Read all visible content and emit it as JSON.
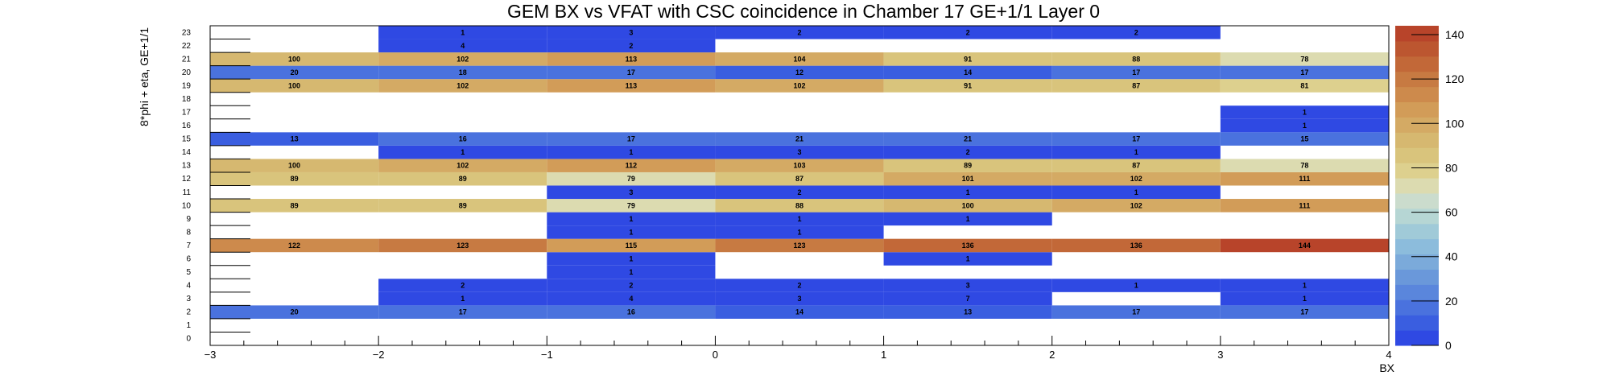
{
  "chart_data": {
    "type": "heatmap",
    "title": "GEM BX vs VFAT with CSC coincidence in Chamber 17 GE+1/1 Layer 0",
    "xlabel": "BX",
    "ylabel": "8*phi + eta, GE+1/1",
    "x_range": [
      -3,
      4
    ],
    "y_range": [
      0,
      24
    ],
    "x_ticks": [
      "−3",
      "−2",
      "−1",
      "0",
      "1",
      "2",
      "3",
      "4"
    ],
    "x_tick_values": [
      -3,
      -2,
      -1,
      0,
      1,
      2,
      3,
      4
    ],
    "x_bin_edges": [
      -3,
      -2,
      -1,
      0,
      1,
      2,
      3,
      4
    ],
    "y_ticks": [
      "0",
      "1",
      "2",
      "3",
      "4",
      "5",
      "6",
      "7",
      "8",
      "9",
      "10",
      "11",
      "12",
      "13",
      "14",
      "15",
      "16",
      "17",
      "18",
      "19",
      "20",
      "21",
      "22",
      "23"
    ],
    "colorbar": {
      "range": [
        0,
        144
      ],
      "ticks": [
        "0",
        "20",
        "40",
        "60",
        "80",
        "100",
        "120",
        "140"
      ],
      "tick_values": [
        0,
        20,
        40,
        60,
        80,
        100,
        120,
        140
      ],
      "colors": [
        "#2f49e3",
        "#3a5ee0",
        "#4a72de",
        "#5a86dc",
        "#6a98da",
        "#7baada",
        "#8cbcdc",
        "#a0cad8",
        "#b6d6d4",
        "#cbdccd",
        "#dcdbb0",
        "#ddd08e",
        "#d9c47c",
        "#d6b870",
        "#d4aa64",
        "#d29c58",
        "#cd8a4c",
        "#c77a42",
        "#c26838",
        "#bc5630",
        "#b8442a"
      ],
      "max_value": 144
    },
    "cells": [
      {
        "x": -2.5,
        "y": 2,
        "value": 20
      },
      {
        "x": -1.5,
        "y": 2,
        "value": 17
      },
      {
        "x": -0.5,
        "y": 2,
        "value": 16
      },
      {
        "x": 0.5,
        "y": 2,
        "value": 14
      },
      {
        "x": 1.5,
        "y": 2,
        "value": 13
      },
      {
        "x": 2.5,
        "y": 2,
        "value": 17
      },
      {
        "x": 3.5,
        "y": 2,
        "value": 17
      },
      {
        "x": -1.5,
        "y": 3,
        "value": 1
      },
      {
        "x": -0.5,
        "y": 3,
        "value": 4
      },
      {
        "x": 0.5,
        "y": 3,
        "value": 3
      },
      {
        "x": 1.5,
        "y": 3,
        "value": 7
      },
      {
        "x": 3.5,
        "y": 3,
        "value": 1
      },
      {
        "x": -1.5,
        "y": 4,
        "value": 2
      },
      {
        "x": -0.5,
        "y": 4,
        "value": 2
      },
      {
        "x": 0.5,
        "y": 4,
        "value": 2
      },
      {
        "x": 1.5,
        "y": 4,
        "value": 3
      },
      {
        "x": 2.5,
        "y": 4,
        "value": 1
      },
      {
        "x": 3.5,
        "y": 4,
        "value": 1
      },
      {
        "x": -0.5,
        "y": 5,
        "value": 1
      },
      {
        "x": -0.5,
        "y": 6,
        "value": 1
      },
      {
        "x": 1.5,
        "y": 6,
        "value": 1
      },
      {
        "x": -2.5,
        "y": 7,
        "value": 122
      },
      {
        "x": -1.5,
        "y": 7,
        "value": 123
      },
      {
        "x": -0.5,
        "y": 7,
        "value": 115
      },
      {
        "x": 0.5,
        "y": 7,
        "value": 123
      },
      {
        "x": 1.5,
        "y": 7,
        "value": 136
      },
      {
        "x": 2.5,
        "y": 7,
        "value": 136
      },
      {
        "x": 3.5,
        "y": 7,
        "value": 144
      },
      {
        "x": -0.5,
        "y": 8,
        "value": 1
      },
      {
        "x": 0.5,
        "y": 8,
        "value": 1
      },
      {
        "x": -0.5,
        "y": 9,
        "value": 1
      },
      {
        "x": 0.5,
        "y": 9,
        "value": 1
      },
      {
        "x": 1.5,
        "y": 9,
        "value": 1
      },
      {
        "x": -2.5,
        "y": 10,
        "value": 89
      },
      {
        "x": -1.5,
        "y": 10,
        "value": 89
      },
      {
        "x": -0.5,
        "y": 10,
        "value": 79
      },
      {
        "x": 0.5,
        "y": 10,
        "value": 88
      },
      {
        "x": 1.5,
        "y": 10,
        "value": 100
      },
      {
        "x": 2.5,
        "y": 10,
        "value": 102
      },
      {
        "x": 3.5,
        "y": 10,
        "value": 111
      },
      {
        "x": -0.5,
        "y": 11,
        "value": 3
      },
      {
        "x": 0.5,
        "y": 11,
        "value": 2
      },
      {
        "x": 1.5,
        "y": 11,
        "value": 1
      },
      {
        "x": 2.5,
        "y": 11,
        "value": 1
      },
      {
        "x": -2.5,
        "y": 12,
        "value": 89
      },
      {
        "x": -1.5,
        "y": 12,
        "value": 89
      },
      {
        "x": -0.5,
        "y": 12,
        "value": 79
      },
      {
        "x": 0.5,
        "y": 12,
        "value": 87
      },
      {
        "x": 1.5,
        "y": 12,
        "value": 101
      },
      {
        "x": 2.5,
        "y": 12,
        "value": 102
      },
      {
        "x": 3.5,
        "y": 12,
        "value": 111
      },
      {
        "x": -2.5,
        "y": 13,
        "value": 100
      },
      {
        "x": -1.5,
        "y": 13,
        "value": 102
      },
      {
        "x": -0.5,
        "y": 13,
        "value": 112
      },
      {
        "x": 0.5,
        "y": 13,
        "value": 103
      },
      {
        "x": 1.5,
        "y": 13,
        "value": 89
      },
      {
        "x": 2.5,
        "y": 13,
        "value": 87
      },
      {
        "x": 3.5,
        "y": 13,
        "value": 78
      },
      {
        "x": -1.5,
        "y": 14,
        "value": 1
      },
      {
        "x": -0.5,
        "y": 14,
        "value": 1
      },
      {
        "x": 0.5,
        "y": 14,
        "value": 3
      },
      {
        "x": 1.5,
        "y": 14,
        "value": 2
      },
      {
        "x": 2.5,
        "y": 14,
        "value": 1
      },
      {
        "x": -2.5,
        "y": 15,
        "value": 13
      },
      {
        "x": -1.5,
        "y": 15,
        "value": 16
      },
      {
        "x": -0.5,
        "y": 15,
        "value": 17
      },
      {
        "x": 0.5,
        "y": 15,
        "value": 21
      },
      {
        "x": 1.5,
        "y": 15,
        "value": 21
      },
      {
        "x": 2.5,
        "y": 15,
        "value": 17
      },
      {
        "x": 3.5,
        "y": 15,
        "value": 15
      },
      {
        "x": 3.5,
        "y": 16,
        "value": 1
      },
      {
        "x": 3.5,
        "y": 17,
        "value": 1
      },
      {
        "x": -2.5,
        "y": 19,
        "value": 100
      },
      {
        "x": -1.5,
        "y": 19,
        "value": 102
      },
      {
        "x": -0.5,
        "y": 19,
        "value": 113
      },
      {
        "x": 0.5,
        "y": 19,
        "value": 102
      },
      {
        "x": 1.5,
        "y": 19,
        "value": 91
      },
      {
        "x": 2.5,
        "y": 19,
        "value": 87
      },
      {
        "x": 3.5,
        "y": 19,
        "value": 81
      },
      {
        "x": -2.5,
        "y": 20,
        "value": 20
      },
      {
        "x": -1.5,
        "y": 20,
        "value": 18
      },
      {
        "x": -0.5,
        "y": 20,
        "value": 17
      },
      {
        "x": 0.5,
        "y": 20,
        "value": 12
      },
      {
        "x": 1.5,
        "y": 20,
        "value": 14
      },
      {
        "x": 2.5,
        "y": 20,
        "value": 17
      },
      {
        "x": 3.5,
        "y": 20,
        "value": 17
      },
      {
        "x": -2.5,
        "y": 21,
        "value": 100
      },
      {
        "x": -1.5,
        "y": 21,
        "value": 102
      },
      {
        "x": -0.5,
        "y": 21,
        "value": 113
      },
      {
        "x": 0.5,
        "y": 21,
        "value": 104
      },
      {
        "x": 1.5,
        "y": 21,
        "value": 91
      },
      {
        "x": 2.5,
        "y": 21,
        "value": 88
      },
      {
        "x": 3.5,
        "y": 21,
        "value": 78
      },
      {
        "x": -1.5,
        "y": 22,
        "value": 4
      },
      {
        "x": -0.5,
        "y": 22,
        "value": 2
      },
      {
        "x": -1.5,
        "y": 23,
        "value": 1
      },
      {
        "x": -0.5,
        "y": 23,
        "value": 3
      },
      {
        "x": 0.5,
        "y": 23,
        "value": 2
      },
      {
        "x": 1.5,
        "y": 23,
        "value": 2
      },
      {
        "x": 2.5,
        "y": 23,
        "value": 2
      }
    ]
  }
}
